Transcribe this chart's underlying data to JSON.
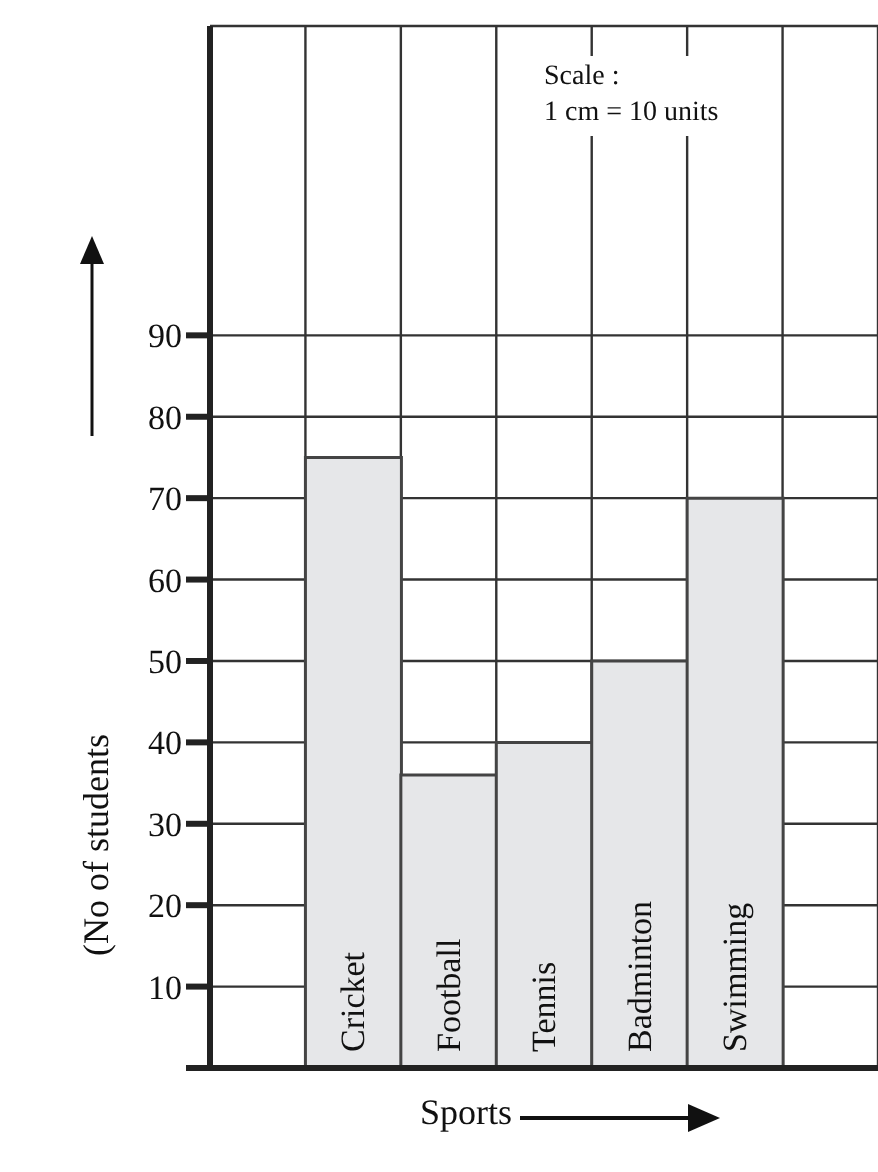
{
  "chart_data": {
    "type": "bar",
    "xlabel": "Sports",
    "ylabel": "(No of students",
    "categories": [
      "Cricket",
      "Football",
      "Tennis",
      "Badminton",
      "Swimming"
    ],
    "values": [
      75,
      36,
      40,
      50,
      70
    ],
    "color": "#e6e7e9",
    "ylim": [
      0,
      128
    ],
    "yticks": [
      {
        "value": 0,
        "label": null
      },
      10,
      20,
      30,
      40,
      50,
      60,
      70,
      80,
      90
    ],
    "grid": true,
    "annotations": [
      "Scale :",
      "1 cm = 10 units"
    ]
  }
}
